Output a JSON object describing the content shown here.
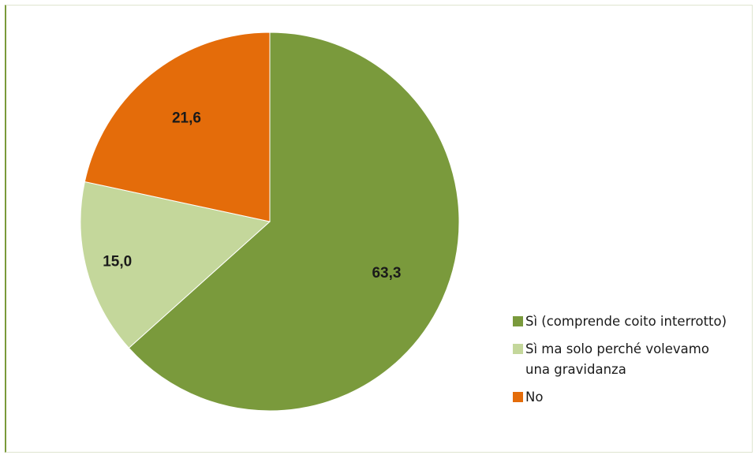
{
  "chart_data": {
    "type": "pie",
    "title": "",
    "start_angle_deg": 0,
    "direction": "clockwise",
    "slices": [
      {
        "label": "Sì (comprende coito interrotto)",
        "value": 63.3,
        "display": "63,3",
        "color": "#7a9a3c"
      },
      {
        "label": "Sì ma solo perché volevamo una gravidanza",
        "value": 15.0,
        "display": "15,0",
        "color": "#c4d79b"
      },
      {
        "label": "No",
        "value": 21.6,
        "display": "21,6",
        "color": "#e46c0a"
      }
    ],
    "legend_position": "right"
  },
  "legend": {
    "items": [
      {
        "text": "Sì (comprende coito interrotto)",
        "color": "#7a9a3c"
      },
      {
        "text": "Sì ma solo perché volevamo una gravidanza",
        "color": "#c4d79b"
      },
      {
        "text": "No",
        "color": "#e46c0a"
      }
    ]
  }
}
